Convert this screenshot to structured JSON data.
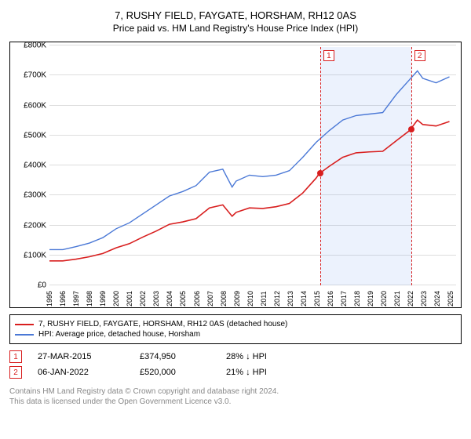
{
  "title": "7, RUSHY FIELD, FAYGATE, HORSHAM, RH12 0AS",
  "subtitle": "Price paid vs. HM Land Registry's House Price Index (HPI)",
  "chart": {
    "type": "line",
    "x_years": [
      1995,
      1996,
      1997,
      1998,
      1999,
      2000,
      2001,
      2002,
      2003,
      2004,
      2005,
      2006,
      2007,
      2008,
      2009,
      2010,
      2011,
      2012,
      2013,
      2014,
      2015,
      2016,
      2017,
      2018,
      2019,
      2020,
      2021,
      2022,
      2023,
      2024,
      2025
    ],
    "xlim": [
      1995,
      2025.5
    ],
    "ylim": [
      0,
      800
    ],
    "ytick_step": 100,
    "y_prefix": "£",
    "y_suffix": "K",
    "grid_color": "#dddddd",
    "border_color": "#000000",
    "background_color": "#ffffff",
    "shade_band": {
      "start": 2015.23,
      "end": 2022.02,
      "color": "rgba(100,150,240,0.12)"
    },
    "series": [
      {
        "name": "hpi",
        "label": "HPI: Average price, detached house, Horsham",
        "color": "#4a78d6",
        "width": 1.4,
        "points": [
          [
            1995,
            120
          ],
          [
            1996,
            120
          ],
          [
            1997,
            130
          ],
          [
            1998,
            142
          ],
          [
            1999,
            160
          ],
          [
            2000,
            190
          ],
          [
            2001,
            210
          ],
          [
            2002,
            240
          ],
          [
            2003,
            270
          ],
          [
            2004,
            300
          ],
          [
            2005,
            315
          ],
          [
            2006,
            335
          ],
          [
            2007,
            380
          ],
          [
            2008,
            390
          ],
          [
            2008.7,
            330
          ],
          [
            2009,
            350
          ],
          [
            2010,
            370
          ],
          [
            2011,
            365
          ],
          [
            2012,
            370
          ],
          [
            2013,
            385
          ],
          [
            2014,
            430
          ],
          [
            2015,
            480
          ],
          [
            2016,
            520
          ],
          [
            2017,
            555
          ],
          [
            2018,
            570
          ],
          [
            2019,
            575
          ],
          [
            2020,
            580
          ],
          [
            2021,
            640
          ],
          [
            2022,
            690
          ],
          [
            2022.6,
            720
          ],
          [
            2023,
            695
          ],
          [
            2024,
            680
          ],
          [
            2025,
            700
          ]
        ]
      },
      {
        "name": "property",
        "label": "7, RUSHY FIELD, FAYGATE, HORSHAM, RH12 0AS (detached house)",
        "color": "#d81e1e",
        "width": 1.6,
        "points": [
          [
            1995,
            82
          ],
          [
            1996,
            82
          ],
          [
            1997,
            88
          ],
          [
            1998,
            96
          ],
          [
            1999,
            107
          ],
          [
            2000,
            126
          ],
          [
            2001,
            140
          ],
          [
            2002,
            162
          ],
          [
            2003,
            182
          ],
          [
            2004,
            205
          ],
          [
            2005,
            213
          ],
          [
            2006,
            224
          ],
          [
            2007,
            260
          ],
          [
            2008,
            270
          ],
          [
            2008.7,
            232
          ],
          [
            2009,
            245
          ],
          [
            2010,
            260
          ],
          [
            2011,
            258
          ],
          [
            2012,
            264
          ],
          [
            2013,
            275
          ],
          [
            2014,
            310
          ],
          [
            2015,
            360
          ],
          [
            2015.23,
            375
          ],
          [
            2016,
            400
          ],
          [
            2017,
            430
          ],
          [
            2018,
            445
          ],
          [
            2019,
            448
          ],
          [
            2020,
            450
          ],
          [
            2021,
            485
          ],
          [
            2022.02,
            520
          ],
          [
            2022.6,
            555
          ],
          [
            2023,
            540
          ],
          [
            2024,
            535
          ],
          [
            2025,
            550
          ]
        ]
      }
    ],
    "sale_points": [
      {
        "x": 2015.23,
        "y": 375,
        "color": "#d81e1e"
      },
      {
        "x": 2022.02,
        "y": 520,
        "color": "#d81e1e"
      }
    ],
    "markers": [
      {
        "n": "1",
        "x": 2015.23,
        "color": "#d81e1e"
      },
      {
        "n": "2",
        "x": 2022.02,
        "color": "#d81e1e"
      }
    ]
  },
  "legend": {
    "items": [
      {
        "color": "#d81e1e",
        "text": "7, RUSHY FIELD, FAYGATE, HORSHAM, RH12 0AS (detached house)"
      },
      {
        "color": "#4a78d6",
        "text": "HPI: Average price, detached house, Horsham"
      }
    ]
  },
  "sales": [
    {
      "n": "1",
      "color": "#d81e1e",
      "date": "27-MAR-2015",
      "price": "£374,950",
      "delta": "28% ↓ HPI"
    },
    {
      "n": "2",
      "color": "#d81e1e",
      "date": "06-JAN-2022",
      "price": "£520,000",
      "delta": "21% ↓ HPI"
    }
  ],
  "footer": {
    "l1": "Contains HM Land Registry data © Crown copyright and database right 2024.",
    "l2": "This data is licensed under the Open Government Licence v3.0."
  }
}
